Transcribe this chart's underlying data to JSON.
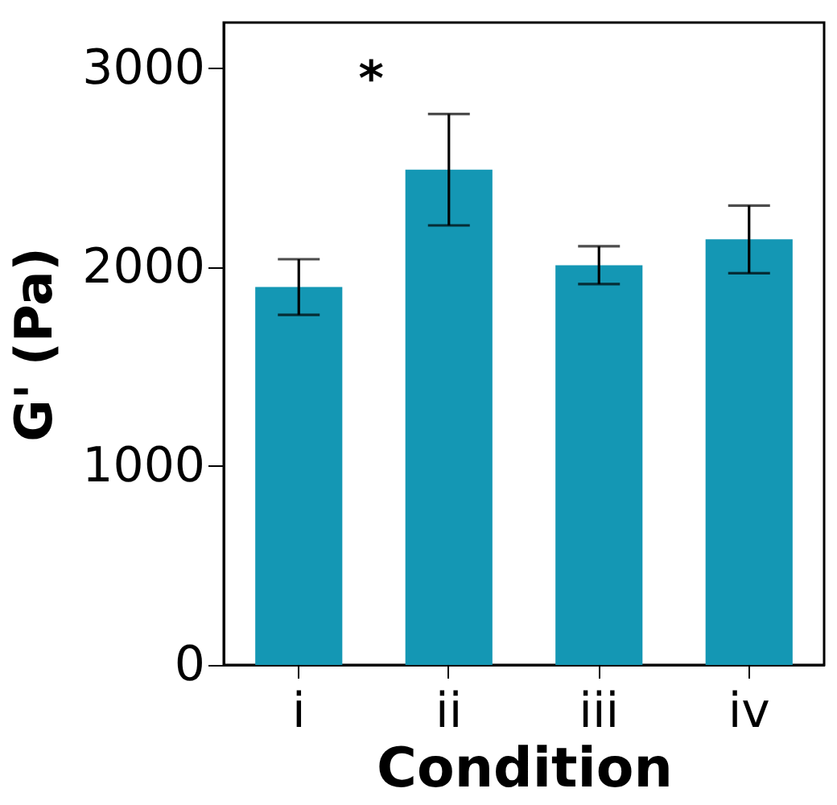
{
  "chart_data": {
    "type": "bar",
    "xlabel": "Condition",
    "ylabel": "G' (Pa)",
    "categories": [
      "i",
      "ii",
      "iii",
      "iv"
    ],
    "values": [
      1900,
      2490,
      2010,
      2140
    ],
    "errors": [
      140,
      280,
      95,
      170
    ],
    "color": "#1497b4",
    "ylim": [
      0,
      3230
    ],
    "yticks": [
      0,
      1000,
      2000,
      3000
    ],
    "grid": false,
    "annotations": [
      "*"
    ]
  }
}
